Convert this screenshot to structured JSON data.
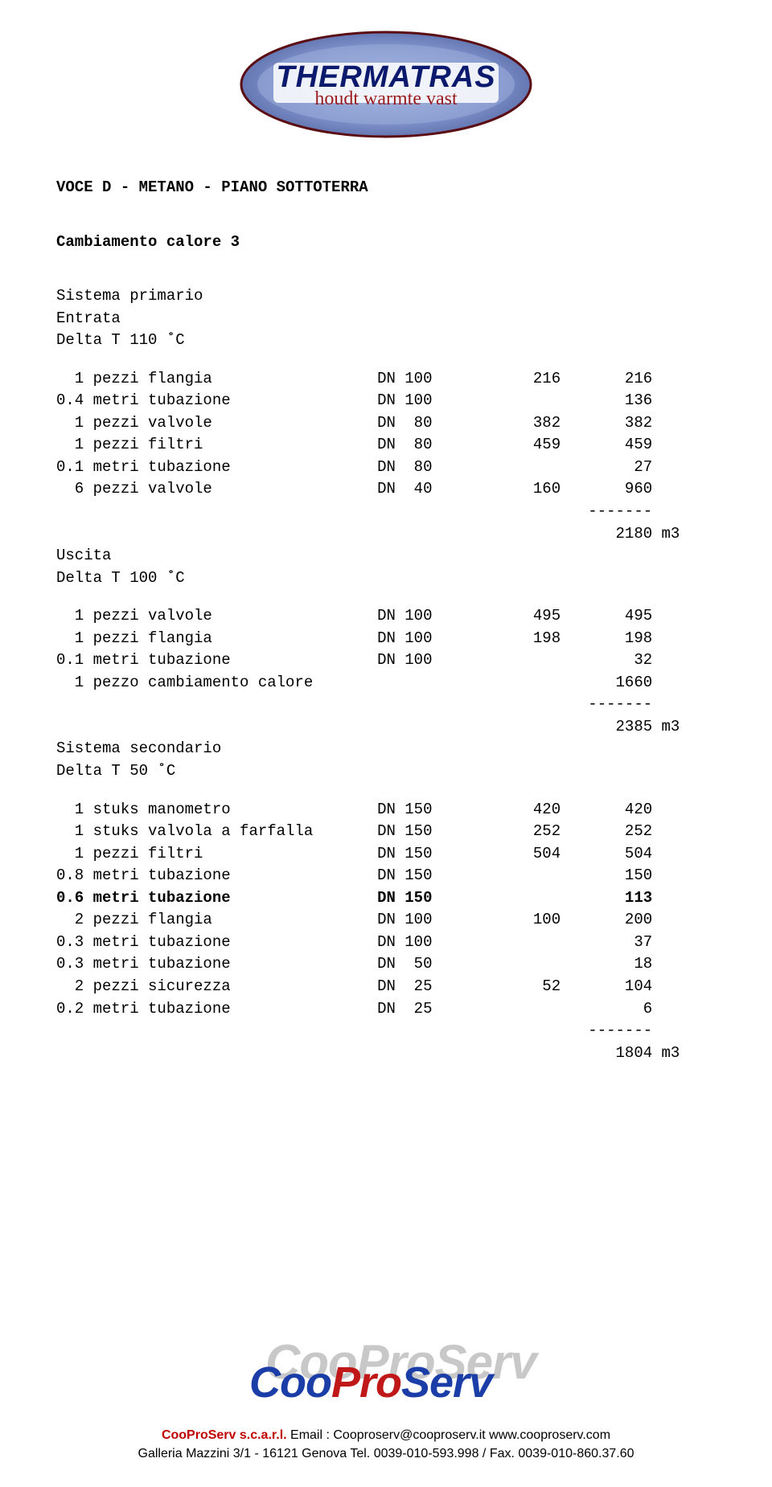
{
  "top_logo": {
    "brand": "THERMATRAS",
    "tagline": "houdt warmte vast"
  },
  "heading": "VOCE D - METANO - PIANO SOTTOTERRA",
  "subtitle": "Cambiamento calore 3",
  "group1": {
    "title1": "Sistema primario",
    "title2": "Entrata",
    "title3": "Delta T 110 ˚C",
    "rows": [
      {
        "label": "  1 pezzi flangia",
        "dn": "DN 100",
        "c1": "216",
        "c2": "216"
      },
      {
        "label": "0.4 metri tubazione",
        "dn": "DN 100",
        "c1": "",
        "c2": "136"
      },
      {
        "label": "  1 pezzi valvole",
        "dn": "DN  80",
        "c1": "382",
        "c2": "382"
      },
      {
        "label": "  1 pezzi filtri",
        "dn": "DN  80",
        "c1": "459",
        "c2": "459"
      },
      {
        "label": "0.1 metri tubazione",
        "dn": "DN  80",
        "c1": "",
        "c2": "27"
      },
      {
        "label": "  6 pezzi valvole",
        "dn": "DN  40",
        "c1": "160",
        "c2": "960"
      }
    ],
    "divider": "-------",
    "total": "2180 m3"
  },
  "group2": {
    "title1": "Uscita",
    "title2": "Delta T 100 ˚C",
    "rows": [
      {
        "label": "  1 pezzi valvole",
        "dn": "DN 100",
        "c1": "495",
        "c2": "495"
      },
      {
        "label": "  1 pezzi flangia",
        "dn": "DN 100",
        "c1": "198",
        "c2": "198"
      },
      {
        "label": "0.1 metri tubazione",
        "dn": "DN 100",
        "c1": "",
        "c2": "32"
      },
      {
        "label": "  1 pezzo cambiamento calore",
        "dn": "",
        "c1": "",
        "c2": "1660"
      }
    ],
    "divider": "-------",
    "total": "2385 m3"
  },
  "group3": {
    "title1": "Sistema secondario",
    "title2": "Delta T 50 ˚C",
    "rows": [
      {
        "label": "  1 stuks manometro",
        "dn": "DN 150",
        "c1": "420",
        "c2": "420",
        "bold": false
      },
      {
        "label": "  1 stuks valvola a farfalla",
        "dn": "DN 150",
        "c1": "252",
        "c2": "252",
        "bold": false
      },
      {
        "label": "  1 pezzi filtri",
        "dn": "DN 150",
        "c1": "504",
        "c2": "504",
        "bold": false
      },
      {
        "label": "0.8 metri tubazione",
        "dn": "DN 150",
        "c1": "",
        "c2": "150",
        "bold": false
      },
      {
        "label": "0.6 metri tubazione",
        "dn": "DN 150",
        "c1": "",
        "c2": "113",
        "bold": true
      },
      {
        "label": "  2 pezzi flangia",
        "dn": "DN 100",
        "c1": "100",
        "c2": "200",
        "bold": false
      },
      {
        "label": "0.3 metri tubazione",
        "dn": "DN 100",
        "c1": "",
        "c2": "37",
        "bold": false
      },
      {
        "label": "0.3 metri tubazione",
        "dn": "DN  50",
        "c1": "",
        "c2": "18",
        "bold": false
      },
      {
        "label": "  2 pezzi sicurezza",
        "dn": "DN  25",
        "c1": "52",
        "c2": "104",
        "bold": false
      },
      {
        "label": "0.2 metri tubazione",
        "dn": "DN  25",
        "c1": "",
        "c2": "6",
        "bold": false
      }
    ],
    "divider": "-------",
    "total": "1804 m3"
  },
  "bottom_logo": {
    "main": "CooProServ",
    "colors": {
      "coo": "#1a3da8",
      "pro": "#c01818",
      "serv": "#1a3da8"
    }
  },
  "footer": {
    "line1_a": "CooProServ s.c.a.r.l.",
    "line1_b": "   Email : Cooproserv@cooproserv.it   www.cooproserv.com",
    "line2": "Galleria Mazzini 3/1 - 16121 Genova  Tel. 0039-010-593.998 / Fax. 0039-010-860.37.60"
  },
  "layout": {
    "col_label_w": 35,
    "col_dn_w": 10,
    "col_c1_w": 10,
    "col_c2_w": 10
  }
}
